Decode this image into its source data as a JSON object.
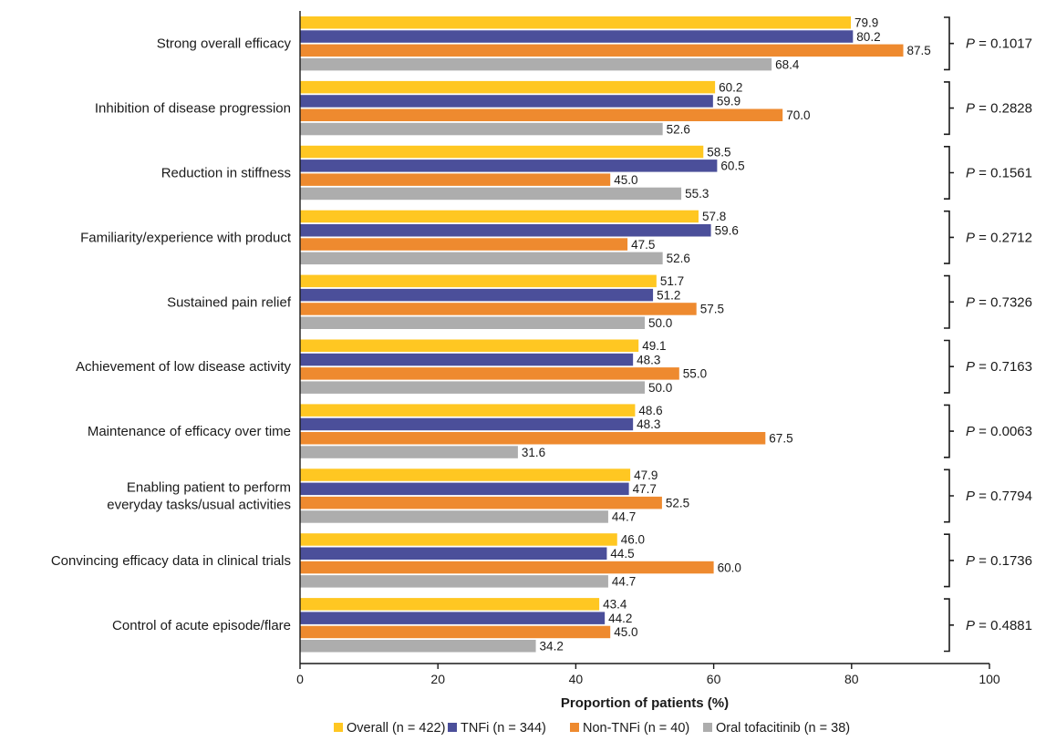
{
  "chart_data": {
    "type": "bar",
    "orientation": "horizontal",
    "categories": [
      "Strong overall efficacy",
      "Inhibition of disease progression",
      "Reduction in stiffness",
      "Familiarity/experience with product",
      "Sustained pain relief",
      "Achievement of low disease activity",
      "Maintenance of efficacy over time",
      "Enabling patient to perform everyday tasks/usual activities",
      "Convincing efficacy data in clinical trials",
      "Control of acute episode/flare"
    ],
    "category_lines": [
      [
        "Strong overall efficacy"
      ],
      [
        "Inhibition of disease progression"
      ],
      [
        "Reduction in stiffness"
      ],
      [
        "Familiarity/experience with product"
      ],
      [
        "Sustained pain relief"
      ],
      [
        "Achievement of low disease activity"
      ],
      [
        "Maintenance of efficacy over time"
      ],
      [
        "Enabling patient to perform",
        "everyday tasks/usual activities"
      ],
      [
        "Convincing efficacy data in clinical trials"
      ],
      [
        "Control of acute episode/flare"
      ]
    ],
    "series": [
      {
        "name": "Overall (n = 422)",
        "color": "#FFC722",
        "values": [
          79.9,
          60.2,
          58.5,
          57.8,
          51.7,
          49.1,
          48.6,
          47.9,
          46.0,
          43.4
        ],
        "labels": [
          "79.9",
          "60.2",
          "58.5",
          "57.8",
          "51.7",
          "49.1",
          "48.6",
          "47.9",
          "46.0",
          "43.4"
        ]
      },
      {
        "name": "TNFi (n = 344)",
        "color": "#4B4F9A",
        "values": [
          80.2,
          59.9,
          60.5,
          59.6,
          51.2,
          48.3,
          48.3,
          47.7,
          44.5,
          44.2
        ],
        "labels": [
          "80.2",
          "59.9",
          "60.5",
          "59.6",
          "51.2",
          "48.3",
          "48.3",
          "47.7",
          "44.5",
          "44.2"
        ]
      },
      {
        "name": "Non-TNFi (n = 40)",
        "color": "#EE8A2F",
        "values": [
          87.5,
          70.0,
          45.0,
          47.5,
          57.5,
          55.0,
          67.5,
          52.5,
          60.0,
          45.0
        ],
        "labels": [
          "87.5",
          "70.0",
          "45.0",
          "47.5",
          "57.5",
          "55.0",
          "67.5",
          "52.5",
          "60.0",
          "45.0"
        ]
      },
      {
        "name": "Oral tofacitinib (n = 38)",
        "color": "#ADADAD",
        "values": [
          68.4,
          52.6,
          55.3,
          52.6,
          50.0,
          50.0,
          31.6,
          44.7,
          44.7,
          34.2
        ],
        "labels": [
          "68.4",
          "52.6",
          "55.3",
          "52.6",
          "50.0",
          "50.0",
          "31.6",
          "44.7",
          "44.7",
          "34.2"
        ]
      }
    ],
    "p_prefix": "P",
    "p_values": [
      " = 0.1017",
      " = 0.2828",
      " = 0.1561",
      " = 0.2712",
      " = 0.7326",
      " = 0.7163",
      " = 0.0063",
      " = 0.7794",
      " = 0.1736",
      " = 0.4881"
    ],
    "xlabel": "Proportion of patients (%)",
    "xlim": [
      0,
      100
    ],
    "xticks": [
      0,
      20,
      40,
      60,
      80,
      100
    ],
    "xtick_labels": [
      "0",
      "20",
      "40",
      "60",
      "80",
      "100"
    ],
    "grid": false,
    "legend_position": "bottom-center"
  }
}
